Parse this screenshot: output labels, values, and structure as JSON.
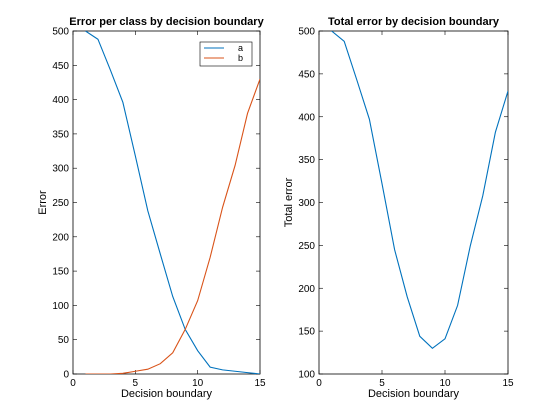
{
  "chart_data": [
    {
      "type": "line",
      "title": "Error per class by decision boundary",
      "xlabel": "Decision boundary",
      "ylabel": "Error",
      "xlim": [
        0,
        15
      ],
      "ylim": [
        0,
        500
      ],
      "xticks": [
        0,
        5,
        10,
        15
      ],
      "yticks": [
        0,
        50,
        100,
        150,
        200,
        250,
        300,
        350,
        400,
        450,
        500
      ],
      "grid": false,
      "legend_position": "top-right",
      "series": [
        {
          "name": "a",
          "color": "#0072BD",
          "x": [
            1,
            2,
            3,
            4,
            5,
            6,
            7,
            8,
            9,
            10,
            11,
            12,
            13,
            14,
            15
          ],
          "y": [
            500,
            488,
            443,
            396,
            318,
            238,
            175,
            113,
            65,
            34,
            10,
            6,
            4,
            2,
            0
          ]
        },
        {
          "name": "b",
          "color": "#D95319",
          "x": [
            1,
            2,
            3,
            4,
            5,
            6,
            7,
            8,
            9,
            10,
            11,
            12,
            13,
            14,
            15
          ],
          "y": [
            0,
            0,
            0,
            1,
            4,
            7,
            15,
            31,
            65,
            107,
            170,
            243,
            304,
            380,
            430
          ]
        }
      ]
    },
    {
      "type": "line",
      "title": "Total error by decision boundary",
      "xlabel": "Decision boundary",
      "ylabel": "Total error",
      "xlim": [
        0,
        15
      ],
      "ylim": [
        100,
        500
      ],
      "xticks": [
        0,
        5,
        10,
        15
      ],
      "yticks": [
        100,
        150,
        200,
        250,
        300,
        350,
        400,
        450,
        500
      ],
      "grid": false,
      "series": [
        {
          "color": "#0072BD",
          "x": [
            1,
            2,
            3,
            4,
            5,
            6,
            7,
            8,
            9,
            10,
            11,
            12,
            13,
            14,
            15
          ],
          "y": [
            500,
            488,
            443,
            397,
            322,
            245,
            190,
            144,
            130,
            141,
            180,
            249,
            308,
            382,
            430
          ]
        }
      ]
    }
  ]
}
